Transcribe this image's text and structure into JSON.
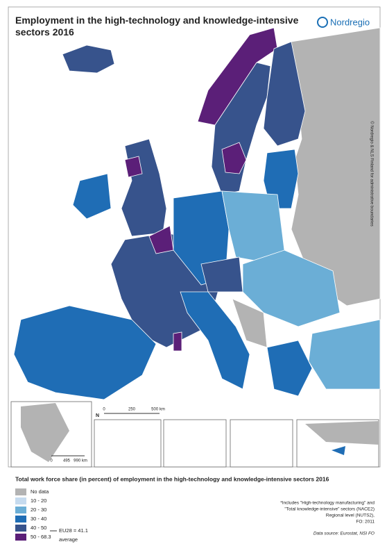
{
  "header": {
    "title": "Employment in the high-technology and knowledge-intensive sectors 2016",
    "logo": "Nordregio"
  },
  "map": {
    "copyright": "© Nordregio & NLS Finland for administrative boundaries",
    "scalebar": {
      "north": "N",
      "labels": [
        "0",
        "250",
        "500 km"
      ]
    },
    "inset_scalebar": {
      "labels": [
        "0",
        "495",
        "990 km"
      ]
    }
  },
  "legend": {
    "title": "Total work force share (in percent) of employment in the high-technology and knowledge-intensive sectors 2016",
    "classes": [
      {
        "label": "No data",
        "color": "#b3b3b3"
      },
      {
        "label": "10 - 20",
        "color": "#c6dbef"
      },
      {
        "label": "20 - 30",
        "color": "#6baed6"
      },
      {
        "label": "30 - 40",
        "color": "#1f6db5"
      },
      {
        "label": "40 - 50",
        "color": "#37538c"
      },
      {
        "label": "50 - 68.3",
        "color": "#5b1f78"
      }
    ],
    "eu_average": "EU28 = 41.1",
    "average_label": "average"
  },
  "notes": {
    "includes": "*Includes \"High-technology manufacturing\" and",
    "includes2": "\"Total knowledge-intensive\" sectors (NACE2)",
    "level": "Regional level (NUTS2),",
    "fo": "FO: 2011",
    "source": "Data source: Eurostat, NSI FO"
  }
}
